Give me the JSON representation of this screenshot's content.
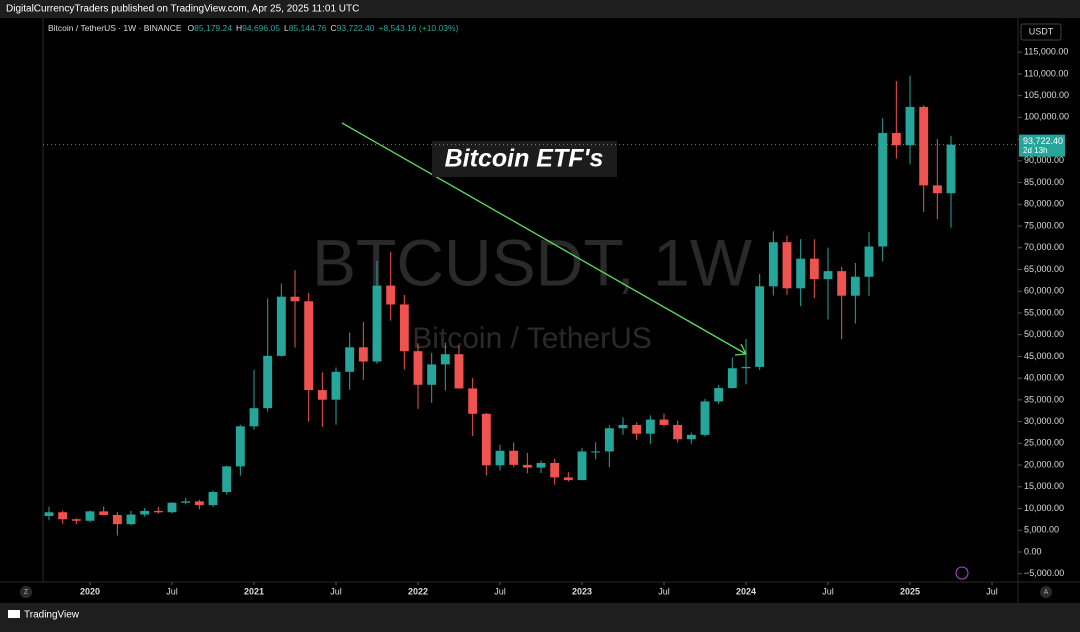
{
  "header": {
    "publisher": "DigitalCurrencyTraders published on TradingView.com, Apr 25, 2025 11:01 UTC",
    "symbol": "Bitcoin / TetherUS · 1W · BINANCE",
    "o_label": "O",
    "o": "85,179.24",
    "h_label": "H",
    "h": "94,696.05",
    "l_label": "L",
    "l": "85,144.76",
    "c_label": "C",
    "c": "93,722.40",
    "change": "+8,543.16 (+10.03%)",
    "currency": "USDT",
    "watermark": "BTCUSDT, 1W",
    "watermark_sub": "Bitcoin / TetherUS",
    "footer": "TradingView",
    "z_button": "Z",
    "a_button": "A"
  },
  "chart_data": {
    "type": "candlestick",
    "annotation": "Bitcoin ETF's",
    "up_color": "#26a69a",
    "down_color": "#ef5350",
    "x": [
      "2019-10",
      "2019-11",
      "2019-12",
      "2020-01",
      "2020-02",
      "2020-03",
      "2020-04",
      "2020-05",
      "2020-06",
      "2020-07",
      "2020-08",
      "2020-09",
      "2020-10",
      "2020-11",
      "2020-12",
      "2021-01",
      "2021-02",
      "2021-03",
      "2021-04",
      "2021-05",
      "2021-06",
      "2021-07",
      "2021-08",
      "2021-09",
      "2021-10",
      "2021-11",
      "2021-12",
      "2022-01",
      "2022-02",
      "2022-03",
      "2022-04",
      "2022-05",
      "2022-06",
      "2022-07",
      "2022-08",
      "2022-09",
      "2022-10",
      "2022-11",
      "2022-12",
      "2023-01",
      "2023-02",
      "2023-03",
      "2023-04",
      "2023-05",
      "2023-06",
      "2023-07",
      "2023-08",
      "2023-09",
      "2023-10",
      "2023-11",
      "2023-12",
      "2024-01",
      "2024-02",
      "2024-03",
      "2024-04",
      "2024-05",
      "2024-06",
      "2024-07",
      "2024-08",
      "2024-09",
      "2024-10",
      "2024-11",
      "2024-12",
      "2025-01",
      "2025-02",
      "2025-03",
      "2025-04"
    ],
    "open": [
      8290,
      9150,
      7540,
      7190,
      9350,
      8520,
      6410,
      8620,
      9450,
      9140,
      11340,
      11650,
      10780,
      13800,
      19700,
      28920,
      33090,
      45130,
      58740,
      57690,
      37250,
      35040,
      41460,
      47100,
      43820,
      61300,
      56950,
      46200,
      38470,
      43160,
      45510,
      37630,
      31800,
      19940,
      23290,
      20050,
      19420,
      20490,
      17160,
      16540,
      23130,
      23140,
      28470,
      29230,
      27220,
      30470,
      29230,
      25940,
      26960,
      34640,
      37720,
      42280,
      42580,
      61130,
      71280,
      60670,
      67490,
      62770,
      64620,
      58970,
      63330,
      70290,
      96410,
      93580,
      102410,
      84350,
      82550
    ],
    "high": [
      10370,
      9520,
      7750,
      9580,
      10500,
      9190,
      9470,
      10080,
      10380,
      11450,
      12470,
      12060,
      14100,
      19860,
      29300,
      41950,
      58350,
      61780,
      64850,
      59590,
      41330,
      42450,
      50500,
      52920,
      67000,
      69000,
      59120,
      47990,
      45820,
      48190,
      47440,
      40020,
      31980,
      24670,
      25210,
      22800,
      20990,
      21480,
      18390,
      23960,
      25250,
      29190,
      31000,
      29820,
      31430,
      31800,
      30230,
      27480,
      35200,
      38450,
      44730,
      48970,
      64000,
      73780,
      72800,
      71980,
      71950,
      70020,
      65600,
      66500,
      73620,
      99800,
      108350,
      109590,
      102780,
      95000,
      95760
    ],
    "low": [
      7300,
      6515,
      6430,
      6850,
      8440,
      3780,
      6150,
      8120,
      8830,
      8890,
      10960,
      9820,
      10370,
      13210,
      17570,
      28130,
      32300,
      44950,
      47040,
      30000,
      28800,
      29280,
      37330,
      39600,
      43280,
      53260,
      42000,
      32920,
      34320,
      37160,
      37580,
      26700,
      17620,
      18780,
      19520,
      18130,
      18180,
      15480,
      16250,
      16500,
      21350,
      19550,
      26940,
      25810,
      24800,
      28860,
      25170,
      24900,
      26540,
      34100,
      37630,
      38560,
      41880,
      59000,
      59190,
      56550,
      58400,
      53490,
      49000,
      52550,
      58870,
      66830,
      90500,
      89160,
      78260,
      76600,
      74600
    ],
    "close": [
      9150,
      7540,
      7190,
      9350,
      8520,
      6410,
      8620,
      9450,
      9140,
      11340,
      11650,
      10780,
      13800,
      19700,
      28920,
      33090,
      45130,
      58740,
      57690,
      37250,
      35040,
      41460,
      47100,
      43820,
      61300,
      56950,
      46200,
      38470,
      43160,
      45510,
      37630,
      31800,
      19940,
      23290,
      20050,
      19420,
      20490,
      17160,
      16540,
      23130,
      23140,
      28470,
      29230,
      27220,
      30470,
      29230,
      25940,
      26960,
      34640,
      37720,
      42280,
      42580,
      61130,
      71280,
      60670,
      67490,
      62770,
      64620,
      58970,
      63330,
      70290,
      96410,
      93580,
      102410,
      84350,
      82550,
      93720
    ],
    "last_price": {
      "value": 93722.4,
      "label": "93,722.40"
    },
    "countdown": "2d 13h",
    "xlim": [
      "2019-10",
      "2025-10"
    ],
    "xticks": [
      {
        "value": "2020-01",
        "label": "2020"
      },
      {
        "value": "2020-07",
        "label": "Jul"
      },
      {
        "value": "2021-01",
        "label": "2021"
      },
      {
        "value": "2021-07",
        "label": "Jul"
      },
      {
        "value": "2022-01",
        "label": "2022"
      },
      {
        "value": "2022-07",
        "label": "Jul"
      },
      {
        "value": "2023-01",
        "label": "2023"
      },
      {
        "value": "2023-07",
        "label": "Jul"
      },
      {
        "value": "2024-01",
        "label": "2024"
      },
      {
        "value": "2024-07",
        "label": "Jul"
      },
      {
        "value": "2025-01",
        "label": "2025"
      },
      {
        "value": "2025-07",
        "label": "Jul"
      }
    ],
    "ylim": [
      -6900,
      122400
    ],
    "yticks": [
      {
        "value": -5000,
        "label": "−5,000.00"
      },
      {
        "value": 0,
        "label": "0.00"
      },
      {
        "value": 5000,
        "label": "5,000.00"
      },
      {
        "value": 10000,
        "label": "10,000.00"
      },
      {
        "value": 15000,
        "label": "15,000.00"
      },
      {
        "value": 20000,
        "label": "20,000.00"
      },
      {
        "value": 25000,
        "label": "25,000.00"
      },
      {
        "value": 30000,
        "label": "30,000.00"
      },
      {
        "value": 35000,
        "label": "35,000.00"
      },
      {
        "value": 40000,
        "label": "40,000.00"
      },
      {
        "value": 45000,
        "label": "45,000.00"
      },
      {
        "value": 50000,
        "label": "50,000.00"
      },
      {
        "value": 55000,
        "label": "55,000.00"
      },
      {
        "value": 60000,
        "label": "60,000.00"
      },
      {
        "value": 65000,
        "label": "65,000.00"
      },
      {
        "value": 70000,
        "label": "70,000.00"
      },
      {
        "value": 75000,
        "label": "75,000.00"
      },
      {
        "value": 80000,
        "label": "80,000.00"
      },
      {
        "value": 85000,
        "label": "85,000.00"
      },
      {
        "value": 90000,
        "label": "90,000.00"
      },
      {
        "value": 95000,
        "label": "95,000.00"
      },
      {
        "value": 100000,
        "label": "100,000.00"
      },
      {
        "value": 105000,
        "label": "105,000.00"
      },
      {
        "value": 110000,
        "label": "110,000.00"
      },
      {
        "value": 115000,
        "label": "115,000.00"
      }
    ],
    "grid": false
  }
}
